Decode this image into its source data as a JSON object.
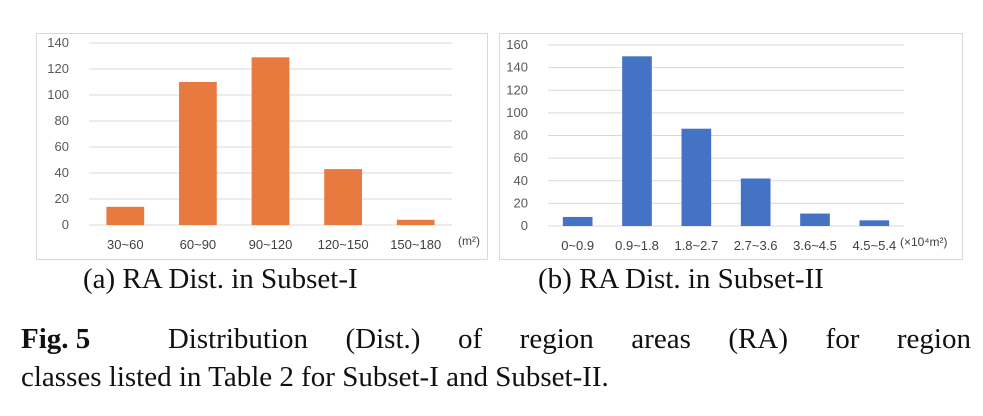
{
  "chart_data": [
    {
      "type": "bar",
      "categories": [
        "30~60",
        "60~90",
        "90~120",
        "120~150",
        "150~180"
      ],
      "values": [
        14,
        110,
        129,
        43,
        4
      ],
      "ylim": [
        0,
        140
      ],
      "yticks": [
        0,
        20,
        40,
        60,
        80,
        100,
        120,
        140
      ],
      "unit_label": "(m²)",
      "color": "#E97A3F",
      "grid": true
    },
    {
      "type": "bar",
      "categories": [
        "0~0.9",
        "0.9~1.8",
        "1.8~2.7",
        "2.7~3.6",
        "3.6~4.5",
        "4.5~5.4"
      ],
      "values": [
        8,
        150,
        86,
        42,
        11,
        5
      ],
      "ylim": [
        0,
        160
      ],
      "yticks": [
        0,
        20,
        40,
        60,
        80,
        100,
        120,
        140,
        160
      ],
      "unit_label": "(×10⁴m²)",
      "color": "#4472C4",
      "grid": true
    }
  ],
  "captions": {
    "a": "(a) RA Dist. in Subset-I",
    "b": "(b) RA Dist. in Subset-II"
  },
  "figure_caption": {
    "label": "Fig. 5",
    "line1_words": [
      "Distribution",
      "(Dist.)",
      "of",
      "region",
      "areas",
      "(RA)",
      "for",
      "region"
    ],
    "line2": "classes listed in Table 2 for Subset-I and Subset-II."
  }
}
